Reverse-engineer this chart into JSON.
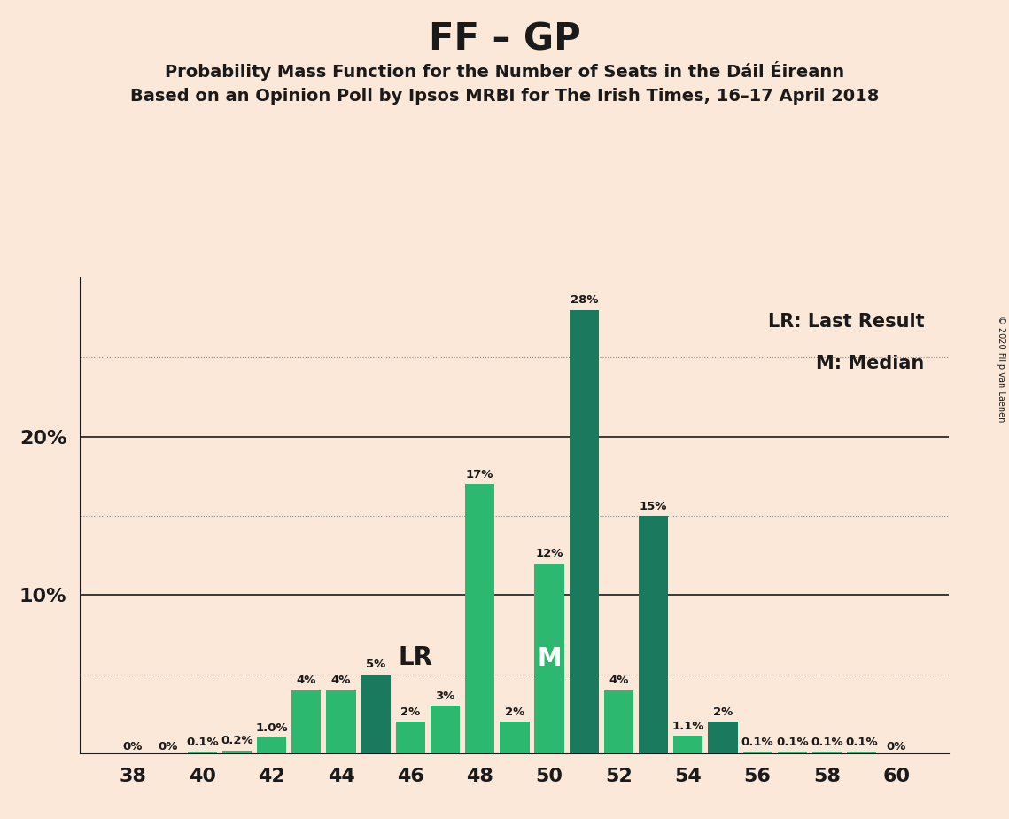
{
  "title": "FF – GP",
  "subtitle1": "Probability Mass Function for the Number of Seats in the Dáil Éireann",
  "subtitle2": "Based on an Opinion Poll by Ipsos MRBI for The Irish Times, 16–17 April 2018",
  "copyright": "© 2020 Filip van Laenen",
  "legend_lr": "LR: Last Result",
  "legend_m": "M: Median",
  "seats": [
    38,
    39,
    40,
    41,
    42,
    43,
    44,
    45,
    46,
    47,
    48,
    49,
    50,
    51,
    52,
    53,
    54,
    55,
    56,
    57,
    58,
    59,
    60
  ],
  "values": [
    0.0,
    0.0,
    0.1,
    0.2,
    1.0,
    4.0,
    4.0,
    5.0,
    2.0,
    3.0,
    17.0,
    2.0,
    12.0,
    28.0,
    4.0,
    15.0,
    1.1,
    2.0,
    0.1,
    0.1,
    0.1,
    0.1,
    0.0
  ],
  "labels": [
    "0%",
    "0%",
    "0.1%",
    "0.2%",
    "1.0%",
    "4%",
    "4%",
    "5%",
    "2%",
    "3%",
    "17%",
    "2%",
    "12%",
    "28%",
    "4%",
    "15%",
    "1.1%",
    "2%",
    "0.1%",
    "0.1%",
    "0.1%",
    "0.1%",
    "0%"
  ],
  "colors": [
    "#2db870",
    "#2db870",
    "#2db870",
    "#2db870",
    "#2db870",
    "#2db870",
    "#2db870",
    "#1a7a5e",
    "#2db870",
    "#2db870",
    "#2db870",
    "#2db870",
    "#2db870",
    "#1a7a5e",
    "#2db870",
    "#1a7a5e",
    "#2db870",
    "#1a7a5e",
    "#2db870",
    "#2db870",
    "#2db870",
    "#2db870",
    "#2db870"
  ],
  "lr_seat": 45,
  "median_seat": 50,
  "lr_label": "LR",
  "median_label": "M",
  "background_color": "#fce8d8",
  "axis_color": "#1a1a1a",
  "grid_dotted_color": "#888888",
  "grid_solid_color": "#1a1a1a",
  "ylim_max": 30,
  "bar_width": 0.85,
  "label_fontsize": 9.5,
  "tick_fontsize": 16,
  "legend_fontsize": 15,
  "ytick_labels": [
    "",
    "10%",
    "20%"
  ],
  "ytick_positions": [
    0,
    10,
    20
  ],
  "xtick_start": 38,
  "xtick_end": 60,
  "xtick_step": 2
}
